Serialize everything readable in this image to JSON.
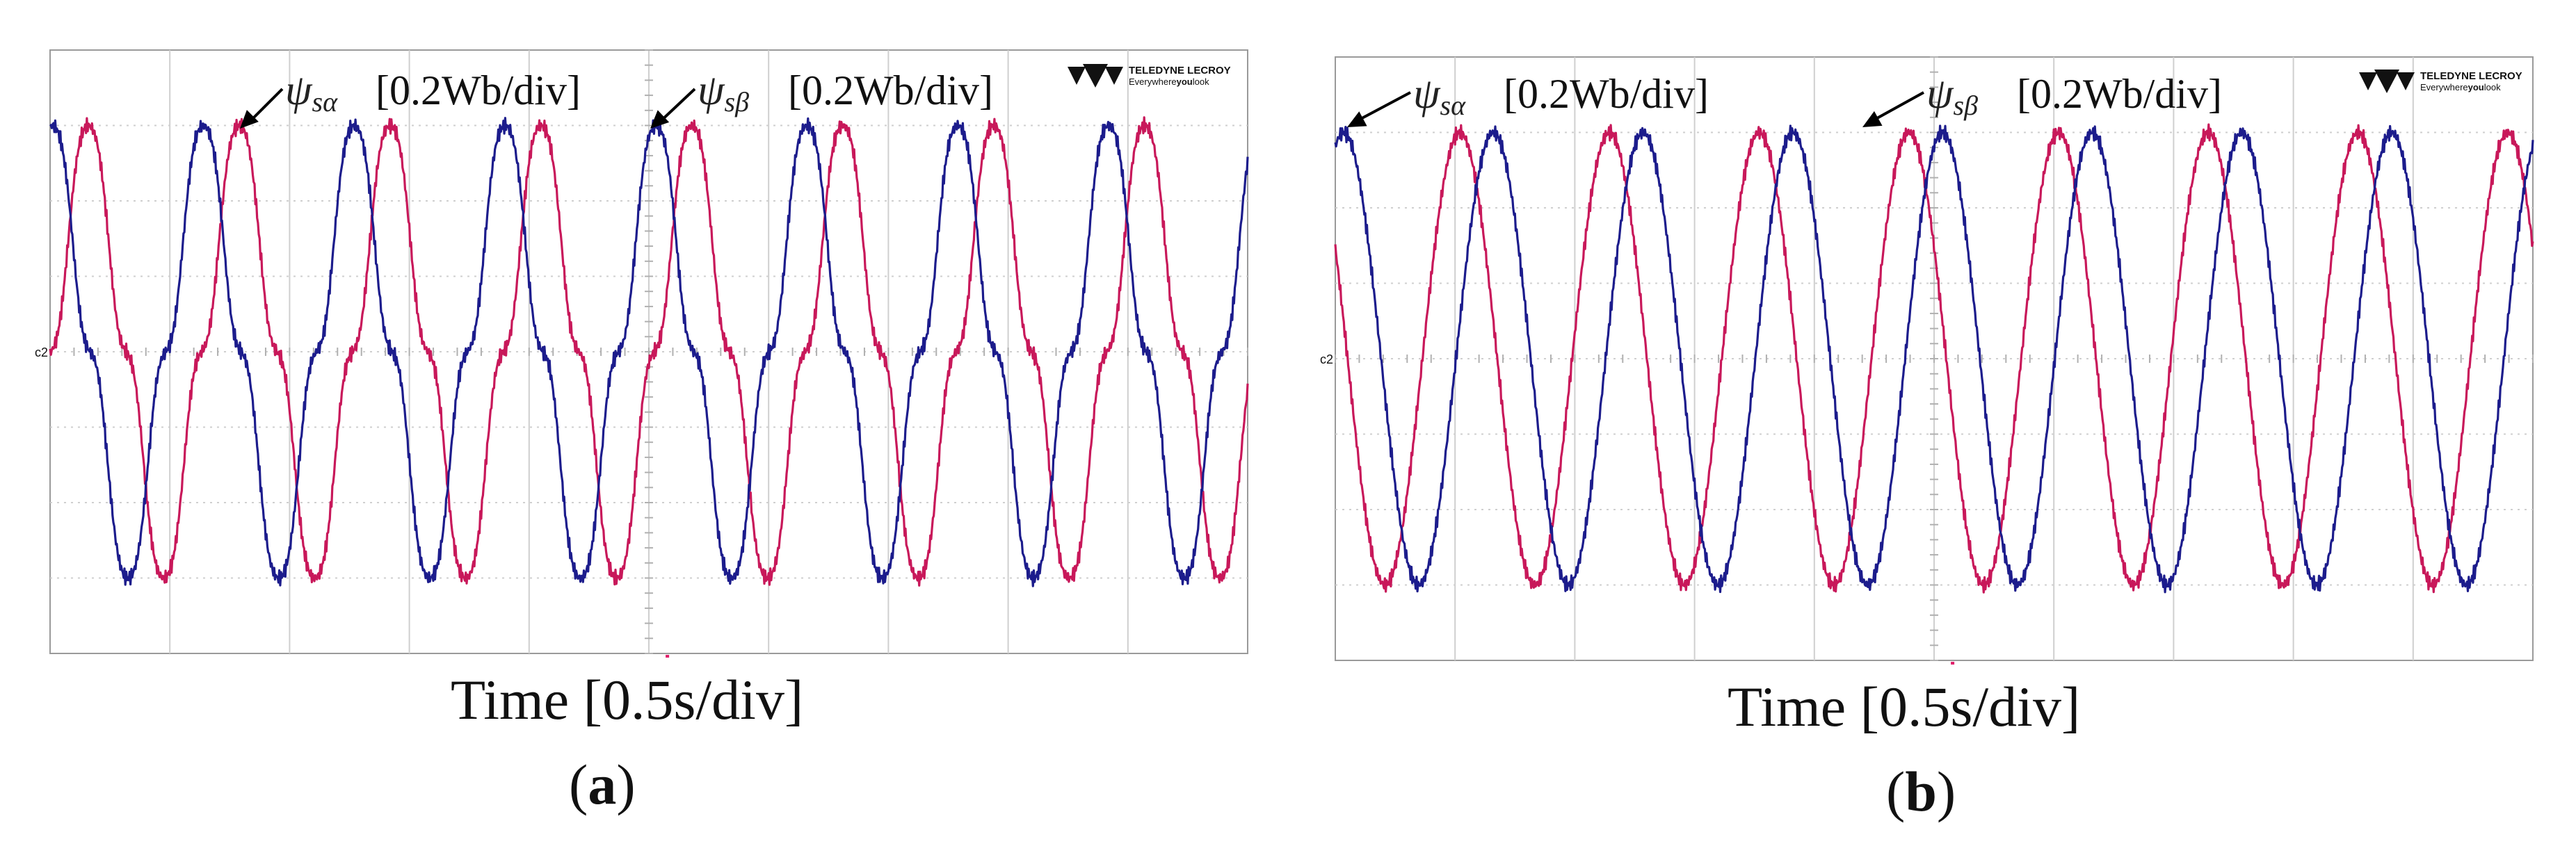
{
  "colors": {
    "psi_alpha": "#c8185a",
    "psi_beta": "#1c1c8c",
    "grid": "#cfcfcf",
    "frame": "#9a9a9a",
    "marker": "#e0206a"
  },
  "brand": {
    "name": "TELEDYNE LECROY",
    "tagline_pre": "Everywhere",
    "tagline_em": "you",
    "tagline_post": "look"
  },
  "chart_data": [
    {
      "panel": "a",
      "type": "line",
      "xlabel": "Time [0.5s/div]",
      "panel_open": "(",
      "panel_letter": "a",
      "panel_close": ")",
      "x_divisions": 10,
      "y_divisions": 8,
      "x_unit_per_div": "0.5 s",
      "y_unit_per_div": "0.2 Wb",
      "xlim": [
        0,
        5
      ],
      "ylim": [
        -0.8,
        0.8
      ],
      "grid": true,
      "ground_marker": "c2",
      "shape": "distorted",
      "annotations": [
        {
          "symbol": "ψ",
          "sub": "sα",
          "scale": "[0.2Wb/div]",
          "target_series": "ψsα"
        },
        {
          "symbol": "ψ",
          "sub": "sβ",
          "scale": "[0.2Wb/div]",
          "target_series": "ψsβ"
        }
      ],
      "series": [
        {
          "name": "ψsα",
          "color": "#c8185a",
          "amplitude": 0.6,
          "period": 0.63,
          "peak_time": 0.79
        },
        {
          "name": "ψsβ",
          "color": "#1c1c8c",
          "amplitude": 0.6,
          "period": 0.63,
          "peak_time": 0.64
        }
      ]
    },
    {
      "panel": "b",
      "type": "line",
      "xlabel": "Time [0.5s/div]",
      "panel_open": "(",
      "panel_letter": "b",
      "panel_close": ")",
      "x_divisions": 10,
      "y_divisions": 8,
      "x_unit_per_div": "0.5 s",
      "y_unit_per_div": "0.2 Wb",
      "xlim": [
        0,
        5
      ],
      "ylim": [
        -0.8,
        0.8
      ],
      "grid": true,
      "ground_marker": "c2",
      "shape": "sinusoidal",
      "annotations": [
        {
          "symbol": "ψ",
          "sub": "sα",
          "scale": "[0.2Wb/div]",
          "target_series": "ψsα"
        },
        {
          "symbol": "ψ",
          "sub": "sβ",
          "scale": "[0.2Wb/div]",
          "target_series": "ψsβ"
        }
      ],
      "series": [
        {
          "name": "ψsα",
          "color": "#c8185a",
          "amplitude": 0.6,
          "period": 0.625,
          "peak_time": 0.52
        },
        {
          "name": "ψsβ",
          "color": "#1c1c8c",
          "amplitude": 0.6,
          "period": 0.625,
          "peak_time": 0.66
        }
      ]
    }
  ]
}
